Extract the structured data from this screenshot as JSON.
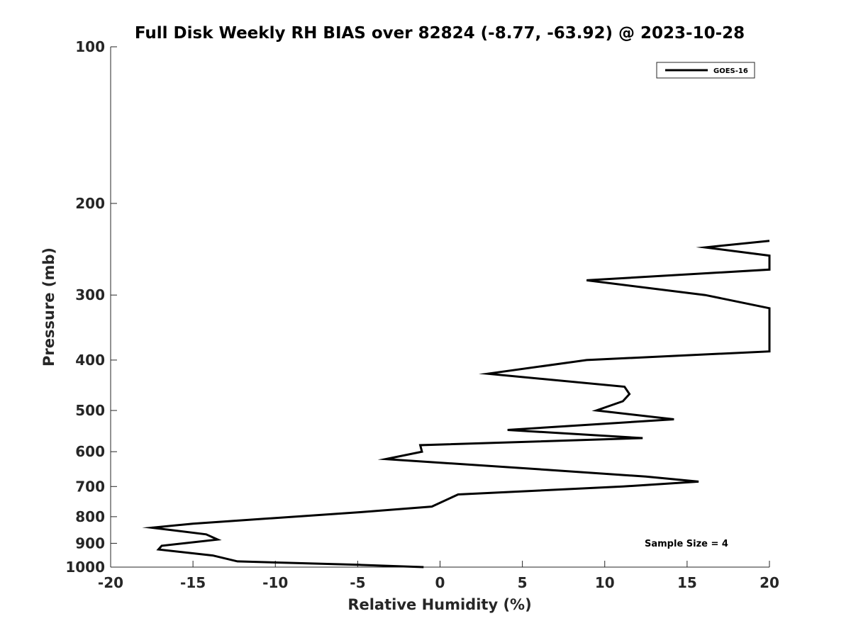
{
  "chart_data": {
    "type": "line",
    "title": "Full Disk Weekly RH BIAS over 82824 (-8.77, -63.92) @ 2023-10-28",
    "xlabel": "Relative Humidity (%)",
    "ylabel": "Pressure (mb)",
    "xlim": [
      -20,
      20
    ],
    "ylim": [
      100,
      1000
    ],
    "y_scale": "log",
    "y_reversed": true,
    "xticks": [
      "-20",
      "-15",
      "-10",
      "-5",
      "0",
      "5",
      "10",
      "15",
      "20"
    ],
    "yticks": [
      "100",
      "200",
      "300",
      "400",
      "500",
      "600",
      "700",
      "800",
      "900",
      "1000"
    ],
    "grid": false,
    "legend_position": "top-right",
    "annotation": "Sample Size = 4",
    "colors": {
      "line": "#000000",
      "axis": "#262626"
    },
    "series": [
      {
        "name": "GOES-16",
        "points": [
          [
            20,
            236
          ],
          [
            16.1,
            243
          ],
          [
            20,
            252
          ],
          [
            20,
            268
          ],
          [
            8.9,
            281
          ],
          [
            16.1,
            300
          ],
          [
            20,
            318
          ],
          [
            20,
            385
          ],
          [
            8.9,
            400
          ],
          [
            2.9,
            425
          ],
          [
            11.2,
            450
          ],
          [
            11.5,
            465
          ],
          [
            11.1,
            480
          ],
          [
            9.5,
            500
          ],
          [
            14.2,
            520
          ],
          [
            4.1,
            545
          ],
          [
            12.3,
            565
          ],
          [
            -1.2,
            583
          ],
          [
            -1.1,
            600
          ],
          [
            -3.3,
            620
          ],
          [
            6.5,
            650
          ],
          [
            12.5,
            670
          ],
          [
            15.7,
            685
          ],
          [
            11.1,
            700
          ],
          [
            1.1,
            725
          ],
          [
            -0.5,
            765
          ],
          [
            -5.0,
            785
          ],
          [
            -15.0,
            825
          ],
          [
            -17.5,
            840
          ],
          [
            -14.2,
            865
          ],
          [
            -13.5,
            885
          ],
          [
            -16.9,
            910
          ],
          [
            -17.1,
            925
          ],
          [
            -13.8,
            950
          ],
          [
            -12.3,
            975
          ],
          [
            -4.9,
            990
          ],
          [
            -1.0,
            1000
          ]
        ]
      }
    ]
  }
}
